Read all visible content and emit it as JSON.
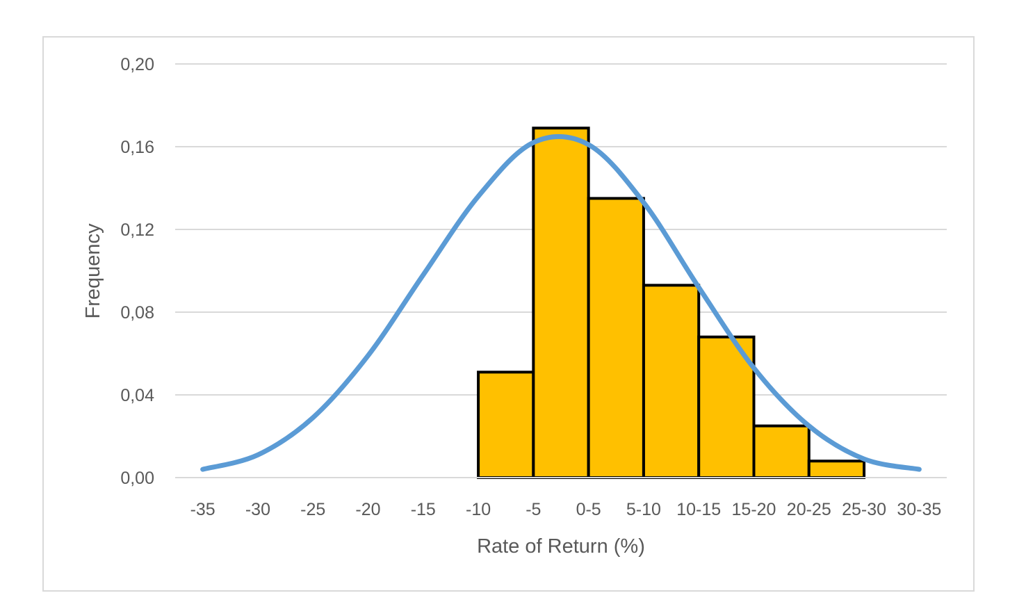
{
  "chart_data": {
    "type": "bar",
    "title": "",
    "xlabel": "Rate of Return (%)",
    "ylabel": "Frequency",
    "categories": [
      "-35",
      "-30",
      "-25",
      "-20",
      "-15",
      "-10",
      "-5",
      "0-5",
      "5-10",
      "10-15",
      "15-20",
      "20-25",
      "25-30",
      "30-35"
    ],
    "series": [
      {
        "type": "bar",
        "color": "#FFC000",
        "values": [
          0,
          0,
          0,
          0,
          0,
          0,
          0.051,
          0.169,
          0.135,
          0.093,
          0.068,
          0.025,
          0.008,
          0
        ]
      },
      {
        "type": "line",
        "color": "#5B9BD5",
        "values": [
          0.004,
          0.011,
          0.029,
          0.059,
          0.098,
          0.136,
          0.162,
          0.161,
          0.133,
          0.092,
          0.053,
          0.025,
          0.009,
          0.004
        ]
      }
    ],
    "yticks": [
      "0,00",
      "0,04",
      "0,08",
      "0,12",
      "0,16",
      "0,20"
    ],
    "ylim": [
      0,
      0.2
    ],
    "grid": true,
    "legend": "none"
  }
}
